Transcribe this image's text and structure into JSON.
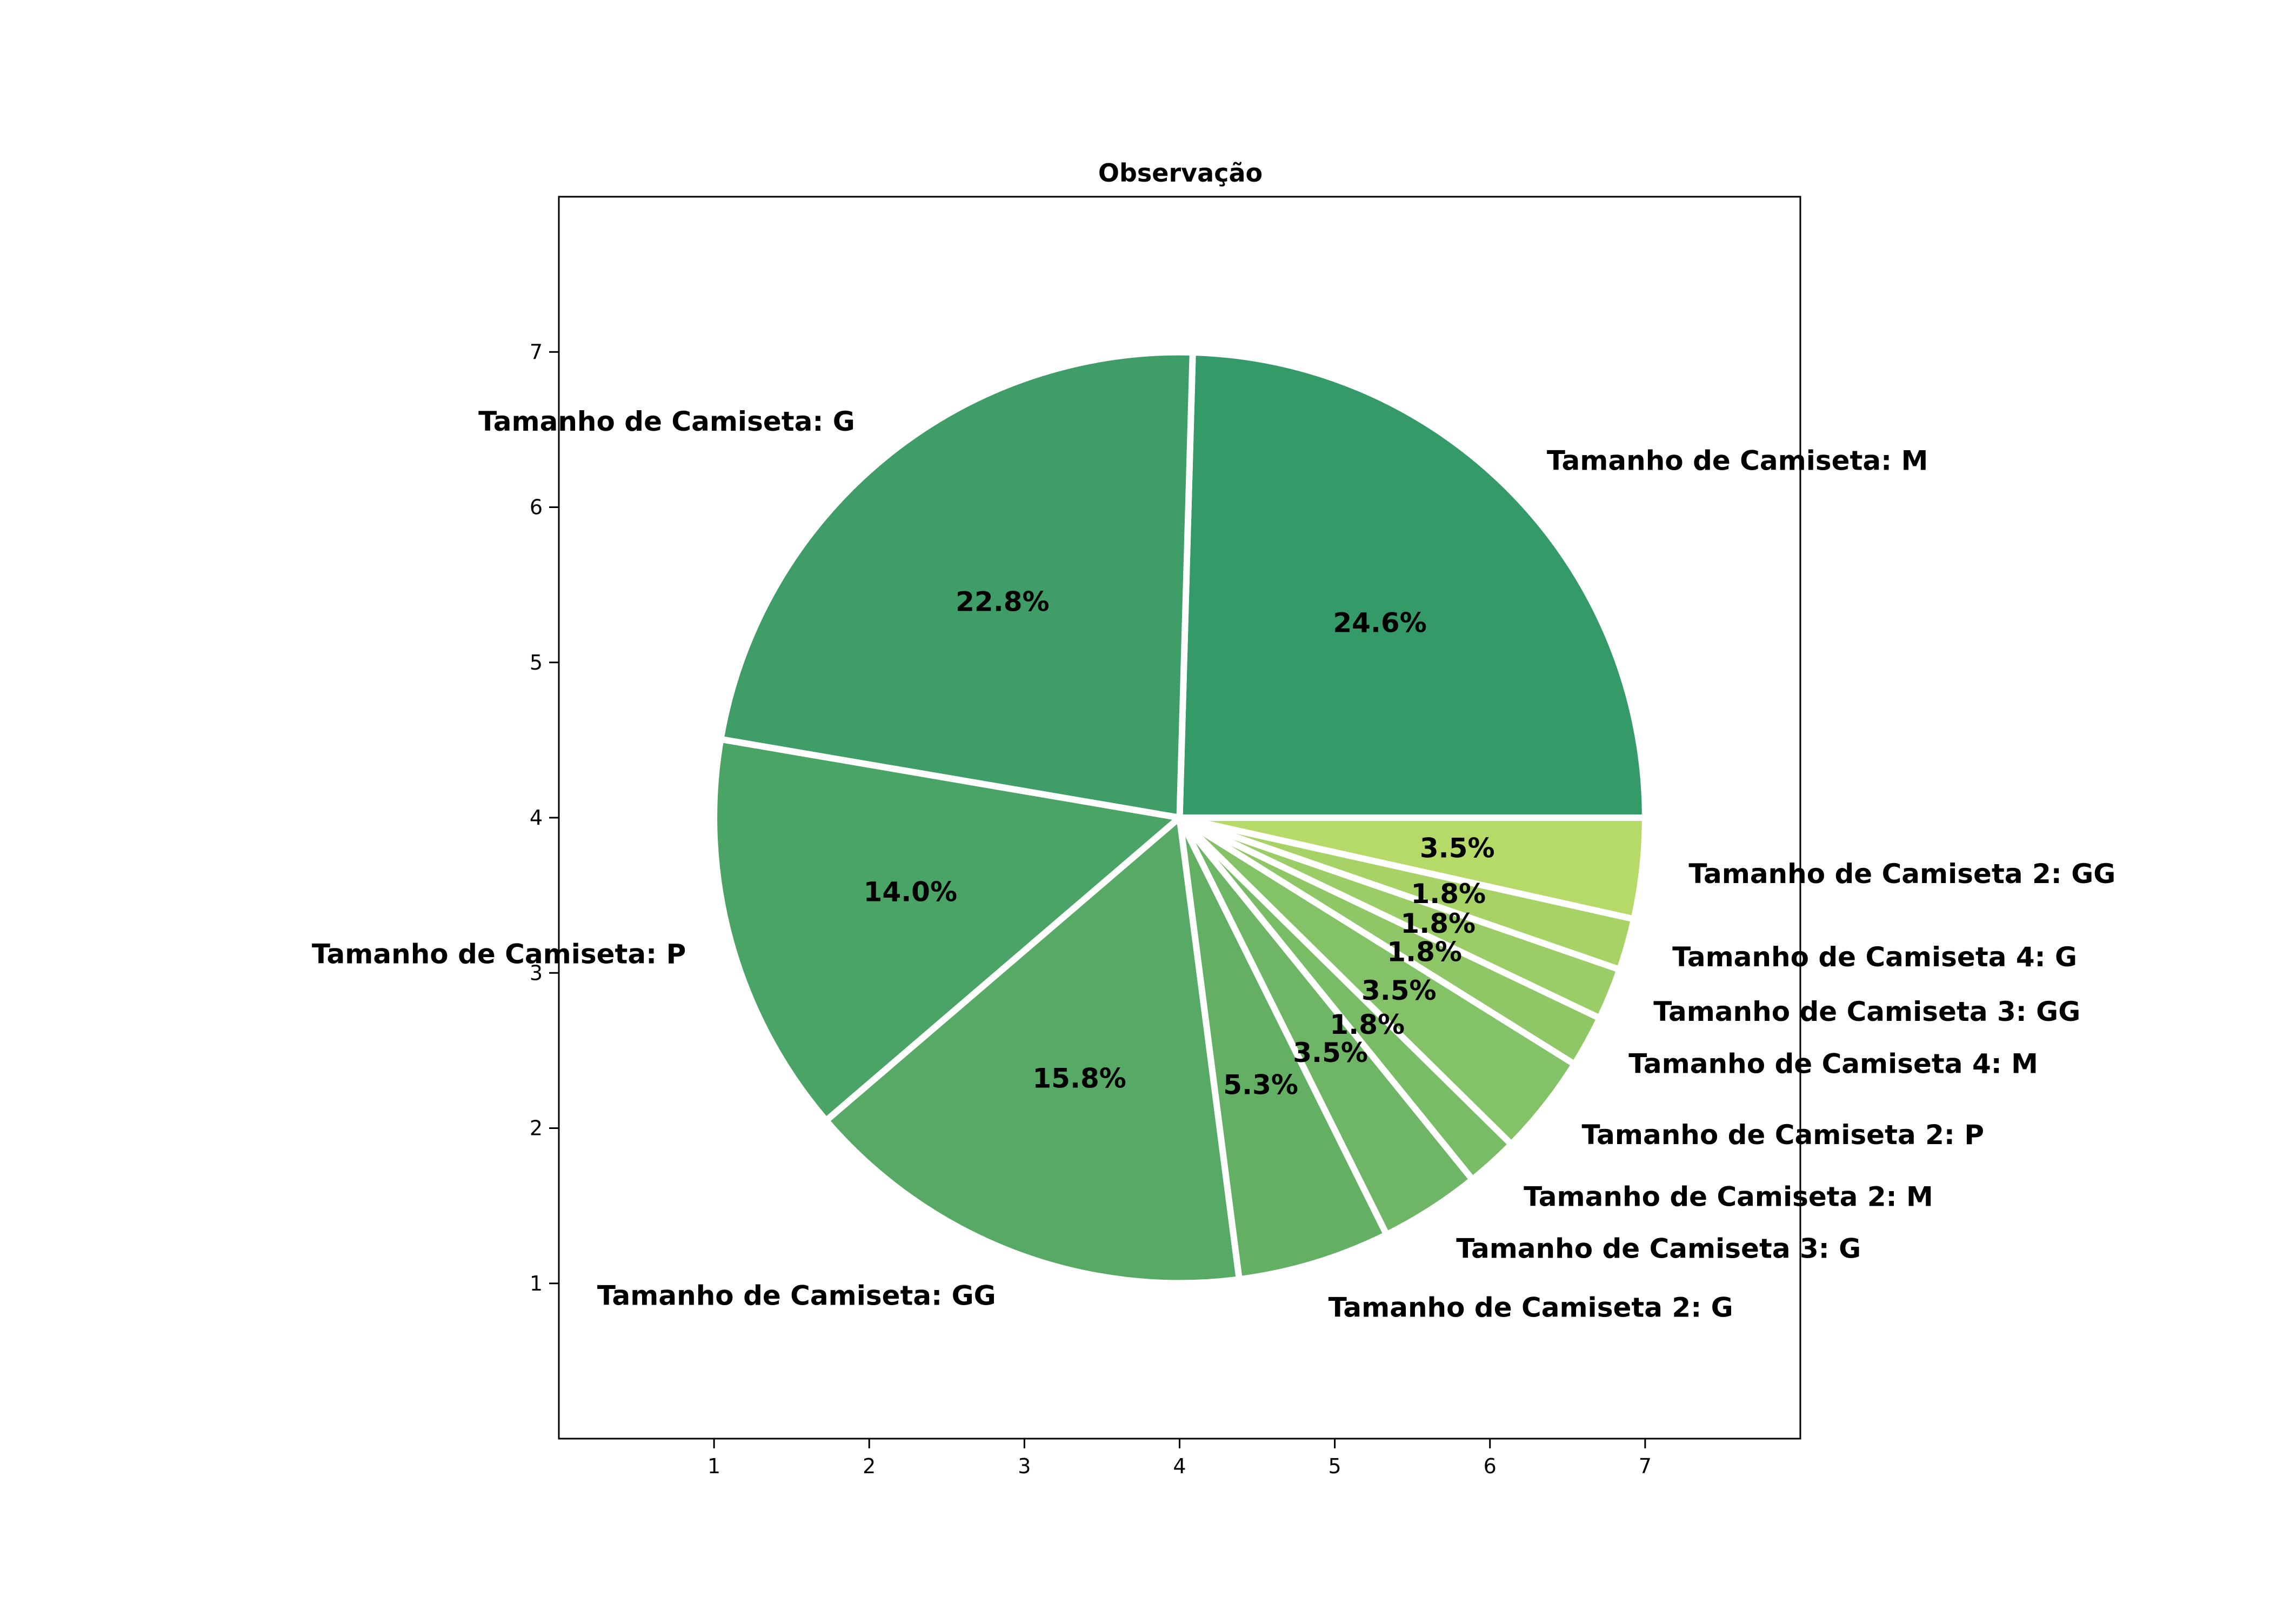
{
  "chart_data": {
    "type": "pie",
    "title": "Observação",
    "xlabel": "",
    "ylabel": "",
    "xlim": [
      0,
      8
    ],
    "ylim": [
      0,
      8
    ],
    "xticks": [
      1,
      2,
      3,
      4,
      5,
      6,
      7
    ],
    "yticks": [
      1,
      2,
      3,
      4,
      5,
      6,
      7
    ],
    "grid": false,
    "center": [
      4,
      4
    ],
    "radius": 3,
    "start_angle_deg": 0,
    "direction": "counterclockwise",
    "slices": [
      {
        "label": "Tamanho de Camiseta: M",
        "value": 24.6,
        "pct_label": "24.6%",
        "color": "#349a68"
      },
      {
        "label": "Tamanho de Camiseta: G",
        "value": 22.8,
        "pct_label": "22.8%",
        "color": "#3f9e67"
      },
      {
        "label": "Tamanho de Camiseta: P",
        "value": 14.0,
        "pct_label": "14.0%",
        "color": "#4aa466"
      },
      {
        "label": "Tamanho de Camiseta: GG",
        "value": 15.8,
        "pct_label": "15.8%",
        "color": "#57aa66"
      },
      {
        "label": "Tamanho de Camiseta 2: G",
        "value": 5.3,
        "pct_label": "5.3%",
        "color": "#63b065"
      },
      {
        "label": "Tamanho de Camiseta 3: G",
        "value": 3.5,
        "pct_label": "3.5%",
        "color": "#6eb665"
      },
      {
        "label": "Tamanho de Camiseta 2: M",
        "value": 1.8,
        "pct_label": "1.8%",
        "color": "#79bc66"
      },
      {
        "label": "Tamanho de Camiseta 2: P",
        "value": 3.5,
        "pct_label": "3.5%",
        "color": "#84c267"
      },
      {
        "label": "Tamanho de Camiseta 4: M",
        "value": 1.8,
        "pct_label": "1.8%",
        "color": "#8fc767"
      },
      {
        "label": "Tamanho de Camiseta 3: GG",
        "value": 1.8,
        "pct_label": "1.8%",
        "color": "#9bcd67"
      },
      {
        "label": "Tamanho de Camiseta 4: G",
        "value": 1.8,
        "pct_label": "1.8%",
        "color": "#a7d366"
      },
      {
        "label": "Tamanho de Camiseta 2: GG",
        "value": 3.5,
        "pct_label": "3.5%",
        "color": "#b5da68"
      }
    ]
  }
}
